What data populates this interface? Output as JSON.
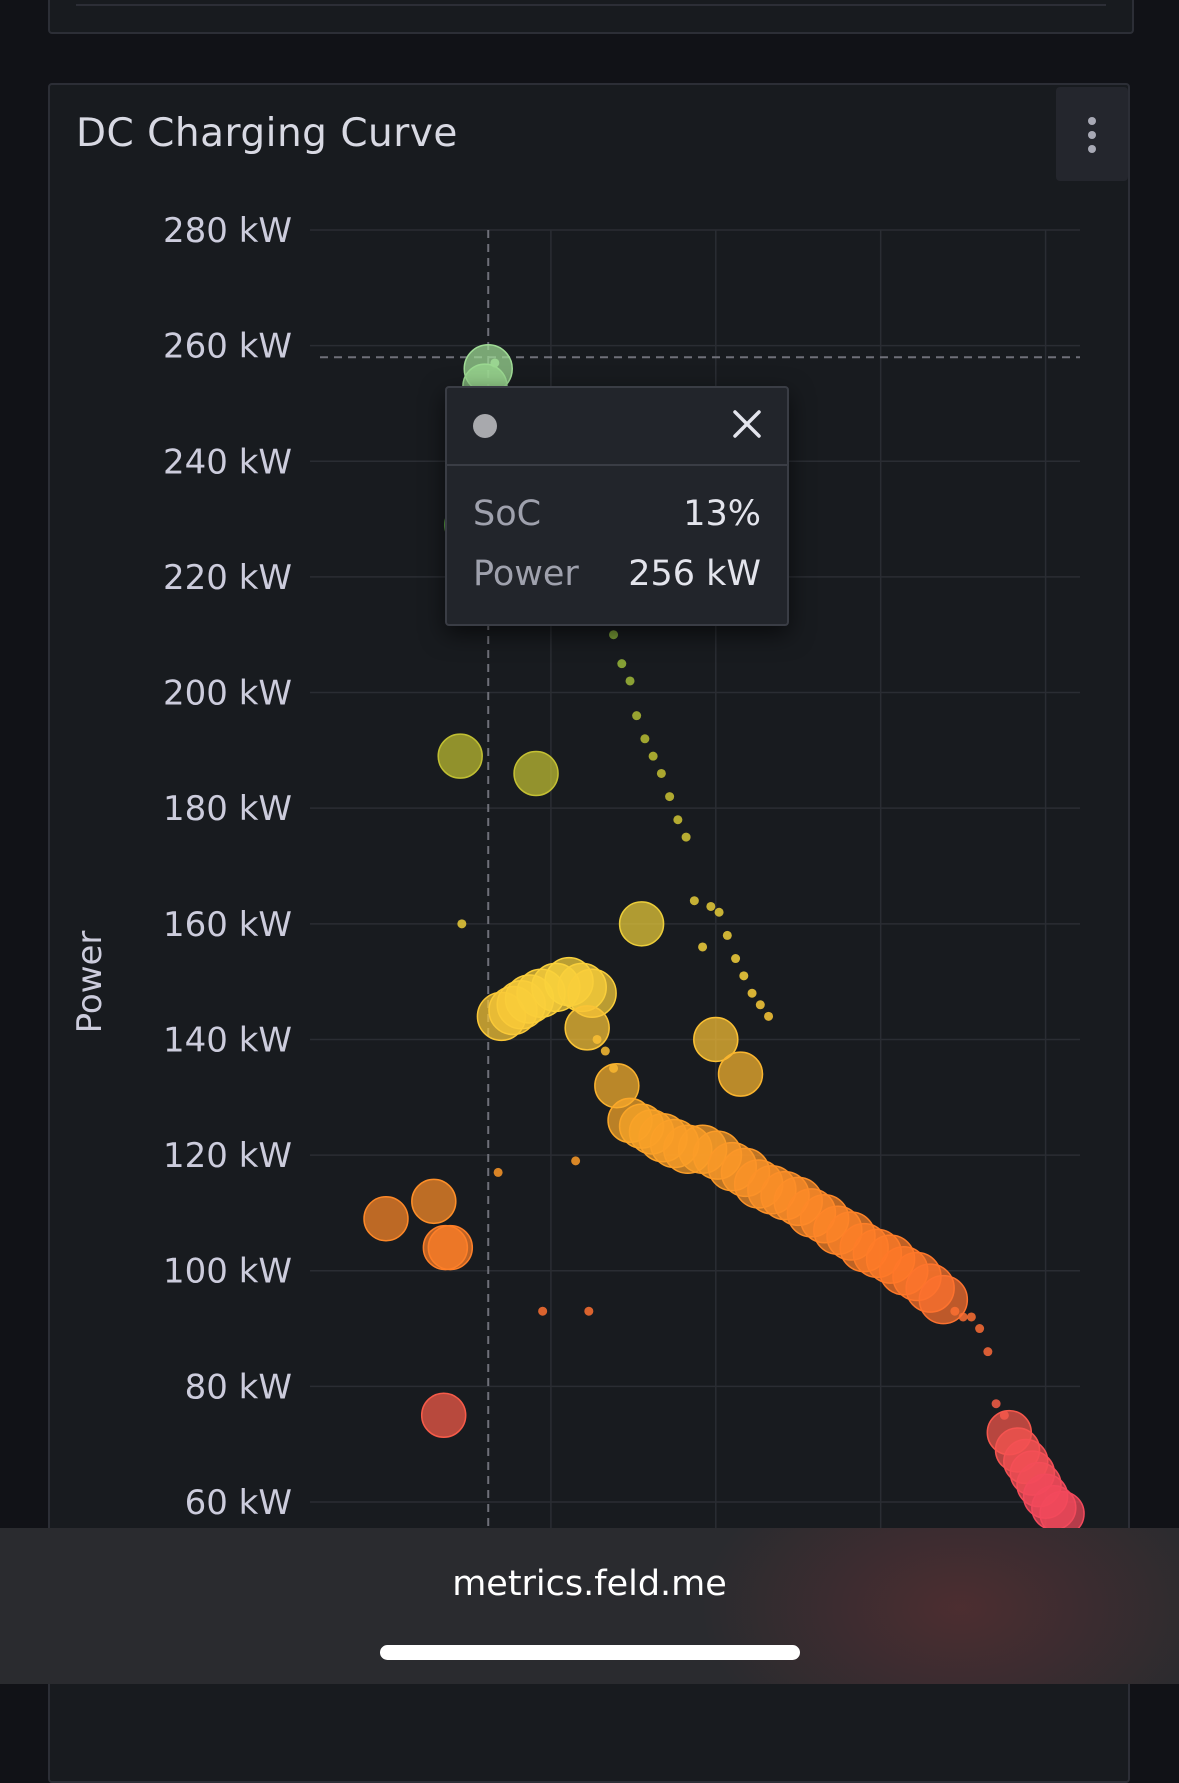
{
  "panel": {
    "title": "DC Charging Curve",
    "menu_icon": "kebab-menu-icon"
  },
  "chart_data": {
    "type": "scatter",
    "title": "DC Charging Curve",
    "ylabel": "Power",
    "xlabel": "",
    "ylim": [
      60,
      280
    ],
    "xlim": [
      0,
      47
    ],
    "y_ticks": [
      {
        "value": 280,
        "label": "280 kW"
      },
      {
        "value": 260,
        "label": "260 kW"
      },
      {
        "value": 240,
        "label": "240 kW"
      },
      {
        "value": 220,
        "label": "220 kW"
      },
      {
        "value": 200,
        "label": "200 kW"
      },
      {
        "value": 180,
        "label": "180 kW"
      },
      {
        "value": 160,
        "label": "160 kW"
      },
      {
        "value": 140,
        "label": "140 kW"
      },
      {
        "value": 120,
        "label": "120 kW"
      },
      {
        "value": 100,
        "label": "100 kW"
      },
      {
        "value": 80,
        "label": "80 kW"
      },
      {
        "value": 60,
        "label": "60 kW"
      }
    ],
    "x_gridlines": [
      10,
      20,
      30,
      40
    ],
    "crosshair": {
      "x": 6.2,
      "y": 258
    },
    "color_scale": "power: red (low) → orange → yellow → green (high)",
    "point_size": "count of samples",
    "points": [
      [
        6.2,
        256,
        3
      ],
      [
        6.6,
        257,
        1
      ],
      [
        6.0,
        253,
        2
      ],
      [
        5.5,
        245,
        2
      ],
      [
        4.9,
        229,
        2
      ],
      [
        4.5,
        189,
        2
      ],
      [
        9.1,
        186,
        2
      ],
      [
        4.6,
        160,
        1
      ],
      [
        15.5,
        160,
        2
      ],
      [
        7.0,
        144,
        3
      ],
      [
        7.7,
        145,
        3
      ],
      [
        8.2,
        146,
        3
      ],
      [
        8.7,
        147,
        3
      ],
      [
        9.4,
        148,
        3
      ],
      [
        10.3,
        149,
        3
      ],
      [
        11.1,
        150,
        3
      ],
      [
        11.9,
        149,
        3
      ],
      [
        12.5,
        148,
        3
      ],
      [
        12.2,
        142,
        2
      ],
      [
        14.0,
        132,
        2
      ],
      [
        20.0,
        140,
        2
      ],
      [
        21.5,
        134,
        2
      ],
      [
        14.8,
        126,
        2
      ],
      [
        15.5,
        125,
        2
      ],
      [
        16.1,
        124,
        2
      ],
      [
        16.8,
        123,
        3
      ],
      [
        17.5,
        122,
        3
      ],
      [
        18.3,
        121,
        3
      ],
      [
        19.2,
        121,
        3
      ],
      [
        20.1,
        120,
        3
      ],
      [
        21.0,
        118,
        3
      ],
      [
        21.8,
        117,
        3
      ],
      [
        22.6,
        115,
        3
      ],
      [
        23.4,
        114,
        3
      ],
      [
        24.2,
        113,
        3
      ],
      [
        25.0,
        112,
        3
      ],
      [
        25.8,
        110,
        3
      ],
      [
        26.6,
        109,
        3
      ],
      [
        27.4,
        107,
        3
      ],
      [
        28.2,
        106,
        3
      ],
      [
        29.0,
        104,
        3
      ],
      [
        29.8,
        103,
        3
      ],
      [
        30.6,
        102,
        3
      ],
      [
        31.4,
        100,
        3
      ],
      [
        32.2,
        99,
        3
      ],
      [
        33.0,
        97,
        3
      ],
      [
        33.8,
        95,
        3
      ],
      [
        0.0,
        109,
        2
      ],
      [
        2.9,
        112,
        2
      ],
      [
        3.6,
        104,
        2
      ],
      [
        3.9,
        104,
        2
      ],
      [
        3.5,
        75,
        2
      ],
      [
        6.8,
        117,
        1
      ],
      [
        11.5,
        119,
        1
      ],
      [
        9.5,
        93,
        1
      ],
      [
        12.3,
        93,
        1
      ],
      [
        34.5,
        93,
        1
      ],
      [
        35.0,
        92,
        1
      ],
      [
        35.5,
        92,
        1
      ],
      [
        36.0,
        90,
        1
      ],
      [
        36.5,
        86,
        1
      ],
      [
        37.0,
        77,
        1
      ],
      [
        37.5,
        75,
        1
      ],
      [
        37.8,
        72,
        2
      ],
      [
        38.3,
        69,
        2
      ],
      [
        38.8,
        67,
        2
      ],
      [
        39.2,
        65,
        2
      ],
      [
        39.6,
        63,
        2
      ],
      [
        40.0,
        61,
        2
      ],
      [
        40.5,
        59,
        2
      ],
      [
        41.0,
        58,
        2
      ],
      [
        7.4,
        235,
        1
      ],
      [
        13.8,
        210,
        1
      ],
      [
        14.3,
        205,
        1
      ],
      [
        14.8,
        202,
        1
      ],
      [
        15.2,
        196,
        1
      ],
      [
        15.7,
        192,
        1
      ],
      [
        16.2,
        189,
        1
      ],
      [
        16.7,
        186,
        1
      ],
      [
        17.2,
        182,
        1
      ],
      [
        17.7,
        178,
        1
      ],
      [
        18.2,
        175,
        1
      ],
      [
        18.7,
        164,
        1
      ],
      [
        19.2,
        156,
        1
      ],
      [
        19.7,
        163,
        1
      ],
      [
        20.2,
        162,
        1
      ],
      [
        20.7,
        158,
        1
      ],
      [
        21.2,
        154,
        1
      ],
      [
        21.7,
        151,
        1
      ],
      [
        22.2,
        148,
        1
      ],
      [
        22.7,
        146,
        1
      ],
      [
        23.2,
        144,
        1
      ],
      [
        12.8,
        140,
        1
      ],
      [
        13.3,
        138,
        1
      ],
      [
        13.8,
        135,
        1
      ]
    ]
  },
  "tooltip": {
    "close_icon": "close-icon",
    "rows": [
      {
        "label": "SoC",
        "value": "13%"
      },
      {
        "label": "Power",
        "value": "256 kW"
      }
    ]
  },
  "browser": {
    "url": "metrics.feld.me"
  }
}
